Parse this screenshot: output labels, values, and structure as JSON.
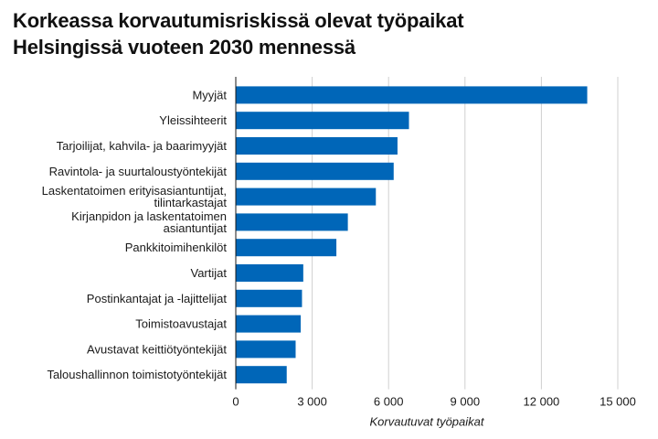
{
  "title_lines": [
    "Korkeassa korvautumisriskissä olevat työpaikat",
    "Helsingissä vuoteen 2030 mennessä"
  ],
  "colors": {
    "bar": "#0066b8",
    "grid": "#d0d0d0",
    "axis": "#1a1a1a"
  },
  "chart_data": {
    "type": "bar",
    "orientation": "horizontal",
    "title": "Korkeassa korvautumisriskissä olevat työpaikat Helsingissä vuoteen 2030 mennessä",
    "xlabel": "Korvautuvat työpaikat",
    "ylabel": "",
    "xlim": [
      0,
      15000
    ],
    "grid": true,
    "xticks": [
      0,
      3000,
      6000,
      9000,
      12000,
      15000
    ],
    "xtick_labels": [
      "0",
      "3 000",
      "6 000",
      "9 000",
      "12 000",
      "15 000"
    ],
    "categories": [
      [
        "Myyjät"
      ],
      [
        "Yleissihteerit"
      ],
      [
        "Tarjoilijat, kahvila- ja baarimyyjät"
      ],
      [
        "Ravintola- ja suurtaloustyöntekijät"
      ],
      [
        "Laskentatoimen erityisasiantuntijat,",
        "tilintarkastajat"
      ],
      [
        "Kirjanpidon ja laskentatoimen",
        "asiantuntijat"
      ],
      [
        "Pankkitoimihenkilöt"
      ],
      [
        "Vartijat"
      ],
      [
        "Postinkantajat ja -lajittelijat"
      ],
      [
        "Toimistoavustajat"
      ],
      [
        "Avustavat keittiötyöntekijät"
      ],
      [
        "Taloushallinnon toimistotyöntekijät"
      ]
    ],
    "values": [
      13800,
      6800,
      6350,
      6200,
      5500,
      4400,
      3950,
      2650,
      2600,
      2550,
      2350,
      2000
    ]
  }
}
